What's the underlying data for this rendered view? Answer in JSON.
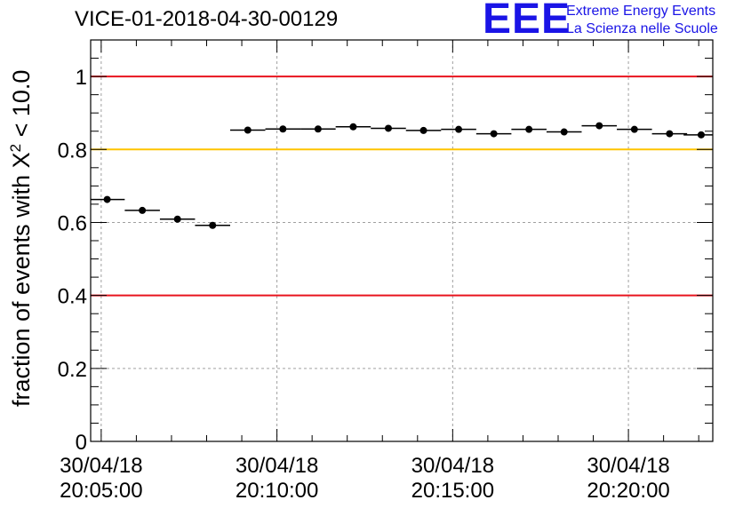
{
  "title": "VICE-01-2018-04-30-00129",
  "logo": {
    "mark": "EEE",
    "line1": "Extreme Energy Events",
    "line2": "La Scienza nelle Scuole"
  },
  "colors": {
    "threshold_red": "#e8141e",
    "threshold_yellow": "#ffc400",
    "logo_blue": "#1a14e6",
    "grid": "#a0a0a0"
  },
  "chart_data": {
    "type": "scatter",
    "ylabel_prefix": "fraction of events with X",
    "ylabel_sup": "2",
    "ylabel_suffix": " < 10.0",
    "xlabel": "",
    "x_unit": "minutes from 30/04/18 20:05:00",
    "xlim": [
      -0.3,
      17.4
    ],
    "ylim": [
      0,
      1.1
    ],
    "grid": true,
    "yticks": [
      {
        "value": 0,
        "label": "0"
      },
      {
        "value": 0.2,
        "label": "0.2"
      },
      {
        "value": 0.4,
        "label": "0.4"
      },
      {
        "value": 0.6,
        "label": "0.6"
      },
      {
        "value": 0.8,
        "label": "0.8"
      },
      {
        "value": 1.0,
        "label": "1"
      }
    ],
    "xticks": [
      {
        "value": 0,
        "date": "30/04/18",
        "time": "20:05:00"
      },
      {
        "value": 5,
        "date": "30/04/18",
        "time": "20:10:00"
      },
      {
        "value": 10,
        "date": "30/04/18",
        "time": "20:15:00"
      },
      {
        "value": 15,
        "date": "30/04/18",
        "time": "20:20:00"
      }
    ],
    "reference_lines": [
      {
        "y": 1.0,
        "color": "red"
      },
      {
        "y": 0.8,
        "color": "yellow"
      },
      {
        "y": 0.4,
        "color": "red"
      }
    ],
    "bin_width": 1.0,
    "points": [
      {
        "x": 0.17,
        "y": 0.663
      },
      {
        "x": 1.17,
        "y": 0.633
      },
      {
        "x": 2.17,
        "y": 0.609
      },
      {
        "x": 3.17,
        "y": 0.592
      },
      {
        "x": 4.17,
        "y": 0.853
      },
      {
        "x": 5.17,
        "y": 0.856
      },
      {
        "x": 6.17,
        "y": 0.856
      },
      {
        "x": 7.17,
        "y": 0.862
      },
      {
        "x": 8.17,
        "y": 0.858
      },
      {
        "x": 9.17,
        "y": 0.852
      },
      {
        "x": 10.17,
        "y": 0.855
      },
      {
        "x": 11.17,
        "y": 0.843
      },
      {
        "x": 12.17,
        "y": 0.855
      },
      {
        "x": 13.17,
        "y": 0.848
      },
      {
        "x": 14.17,
        "y": 0.865
      },
      {
        "x": 15.17,
        "y": 0.855
      },
      {
        "x": 16.17,
        "y": 0.843
      },
      {
        "x": 17.07,
        "y": 0.84
      }
    ]
  }
}
